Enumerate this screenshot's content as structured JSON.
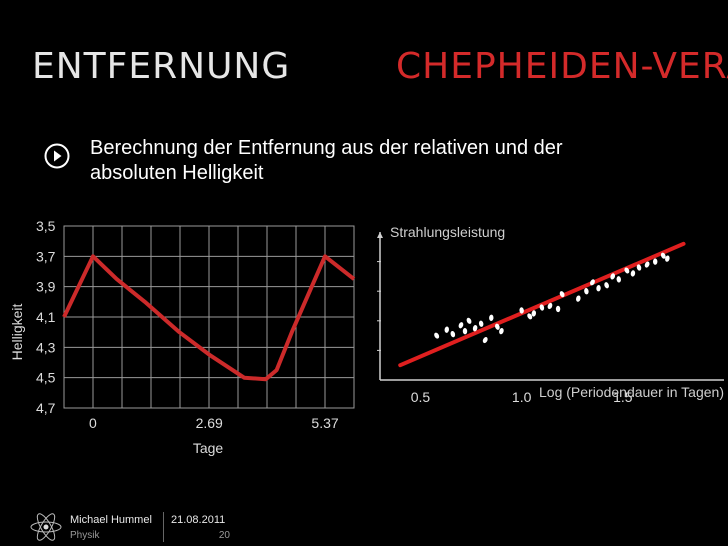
{
  "slide": {
    "title_left": "ENTFERNUNG",
    "title_right": "CHEPHEIDEN-VERÄ",
    "subtitle_line1": "Berechnung der Entfernung aus der relativen und der",
    "subtitle_line2": "absoluten Helligkeit",
    "accent_color": "#d42a2a"
  },
  "footer": {
    "author": "Michael Hummel",
    "department": "Physik",
    "date": "21.08.2011",
    "page": "20"
  },
  "chart_data": [
    {
      "type": "line",
      "ylabel": "Helligkeit",
      "xlabel": "Tage",
      "y_ticks": [
        "3,5",
        "3,7",
        "3,9",
        "4,1",
        "4,3",
        "4,5",
        "4,7"
      ],
      "x_ticks": [
        "0",
        "2.69",
        "5.37"
      ],
      "ylim": [
        4.7,
        3.5
      ],
      "xlim": [
        -0.67,
        6.04
      ],
      "grid": true,
      "series": [
        {
          "color": "#cc2a2a",
          "x": [
            -0.67,
            0.0,
            0.55,
            1.2,
            2.0,
            2.7,
            3.5,
            4.0,
            4.25,
            4.6,
            5.37,
            6.04
          ],
          "y": [
            4.1,
            3.7,
            3.85,
            4.0,
            4.2,
            4.35,
            4.5,
            4.51,
            4.45,
            4.2,
            3.7,
            3.85
          ]
        }
      ]
    },
    {
      "type": "scatter",
      "ylabel": "Strahlungsleistung",
      "xlabel": "Log (Periodendauer in Tagen)",
      "x_ticks": [
        "0.5",
        "1.0",
        "1.5"
      ],
      "xlim": [
        0.3,
        2.0
      ],
      "ylim": [
        0,
        1
      ],
      "grid": false,
      "fit_line": {
        "x": [
          0.4,
          1.8
        ],
        "y": [
          0.1,
          0.92
        ],
        "color": "#e01f1f"
      },
      "points": [
        {
          "x": 0.58,
          "y": 0.3
        },
        {
          "x": 0.63,
          "y": 0.34
        },
        {
          "x": 0.66,
          "y": 0.31
        },
        {
          "x": 0.7,
          "y": 0.37
        },
        {
          "x": 0.72,
          "y": 0.33
        },
        {
          "x": 0.74,
          "y": 0.4
        },
        {
          "x": 0.77,
          "y": 0.35
        },
        {
          "x": 0.8,
          "y": 0.38
        },
        {
          "x": 0.82,
          "y": 0.27
        },
        {
          "x": 0.85,
          "y": 0.42
        },
        {
          "x": 0.88,
          "y": 0.36
        },
        {
          "x": 0.9,
          "y": 0.33
        },
        {
          "x": 1.0,
          "y": 0.47
        },
        {
          "x": 1.04,
          "y": 0.43
        },
        {
          "x": 1.06,
          "y": 0.45
        },
        {
          "x": 1.1,
          "y": 0.49
        },
        {
          "x": 1.14,
          "y": 0.5
        },
        {
          "x": 1.18,
          "y": 0.48
        },
        {
          "x": 1.2,
          "y": 0.58
        },
        {
          "x": 1.28,
          "y": 0.55
        },
        {
          "x": 1.32,
          "y": 0.6
        },
        {
          "x": 1.35,
          "y": 0.66
        },
        {
          "x": 1.38,
          "y": 0.62
        },
        {
          "x": 1.42,
          "y": 0.64
        },
        {
          "x": 1.45,
          "y": 0.7
        },
        {
          "x": 1.48,
          "y": 0.68
        },
        {
          "x": 1.52,
          "y": 0.74
        },
        {
          "x": 1.55,
          "y": 0.72
        },
        {
          "x": 1.58,
          "y": 0.76
        },
        {
          "x": 1.62,
          "y": 0.78
        },
        {
          "x": 1.66,
          "y": 0.8
        },
        {
          "x": 1.7,
          "y": 0.84
        },
        {
          "x": 1.72,
          "y": 0.82
        }
      ]
    }
  ]
}
